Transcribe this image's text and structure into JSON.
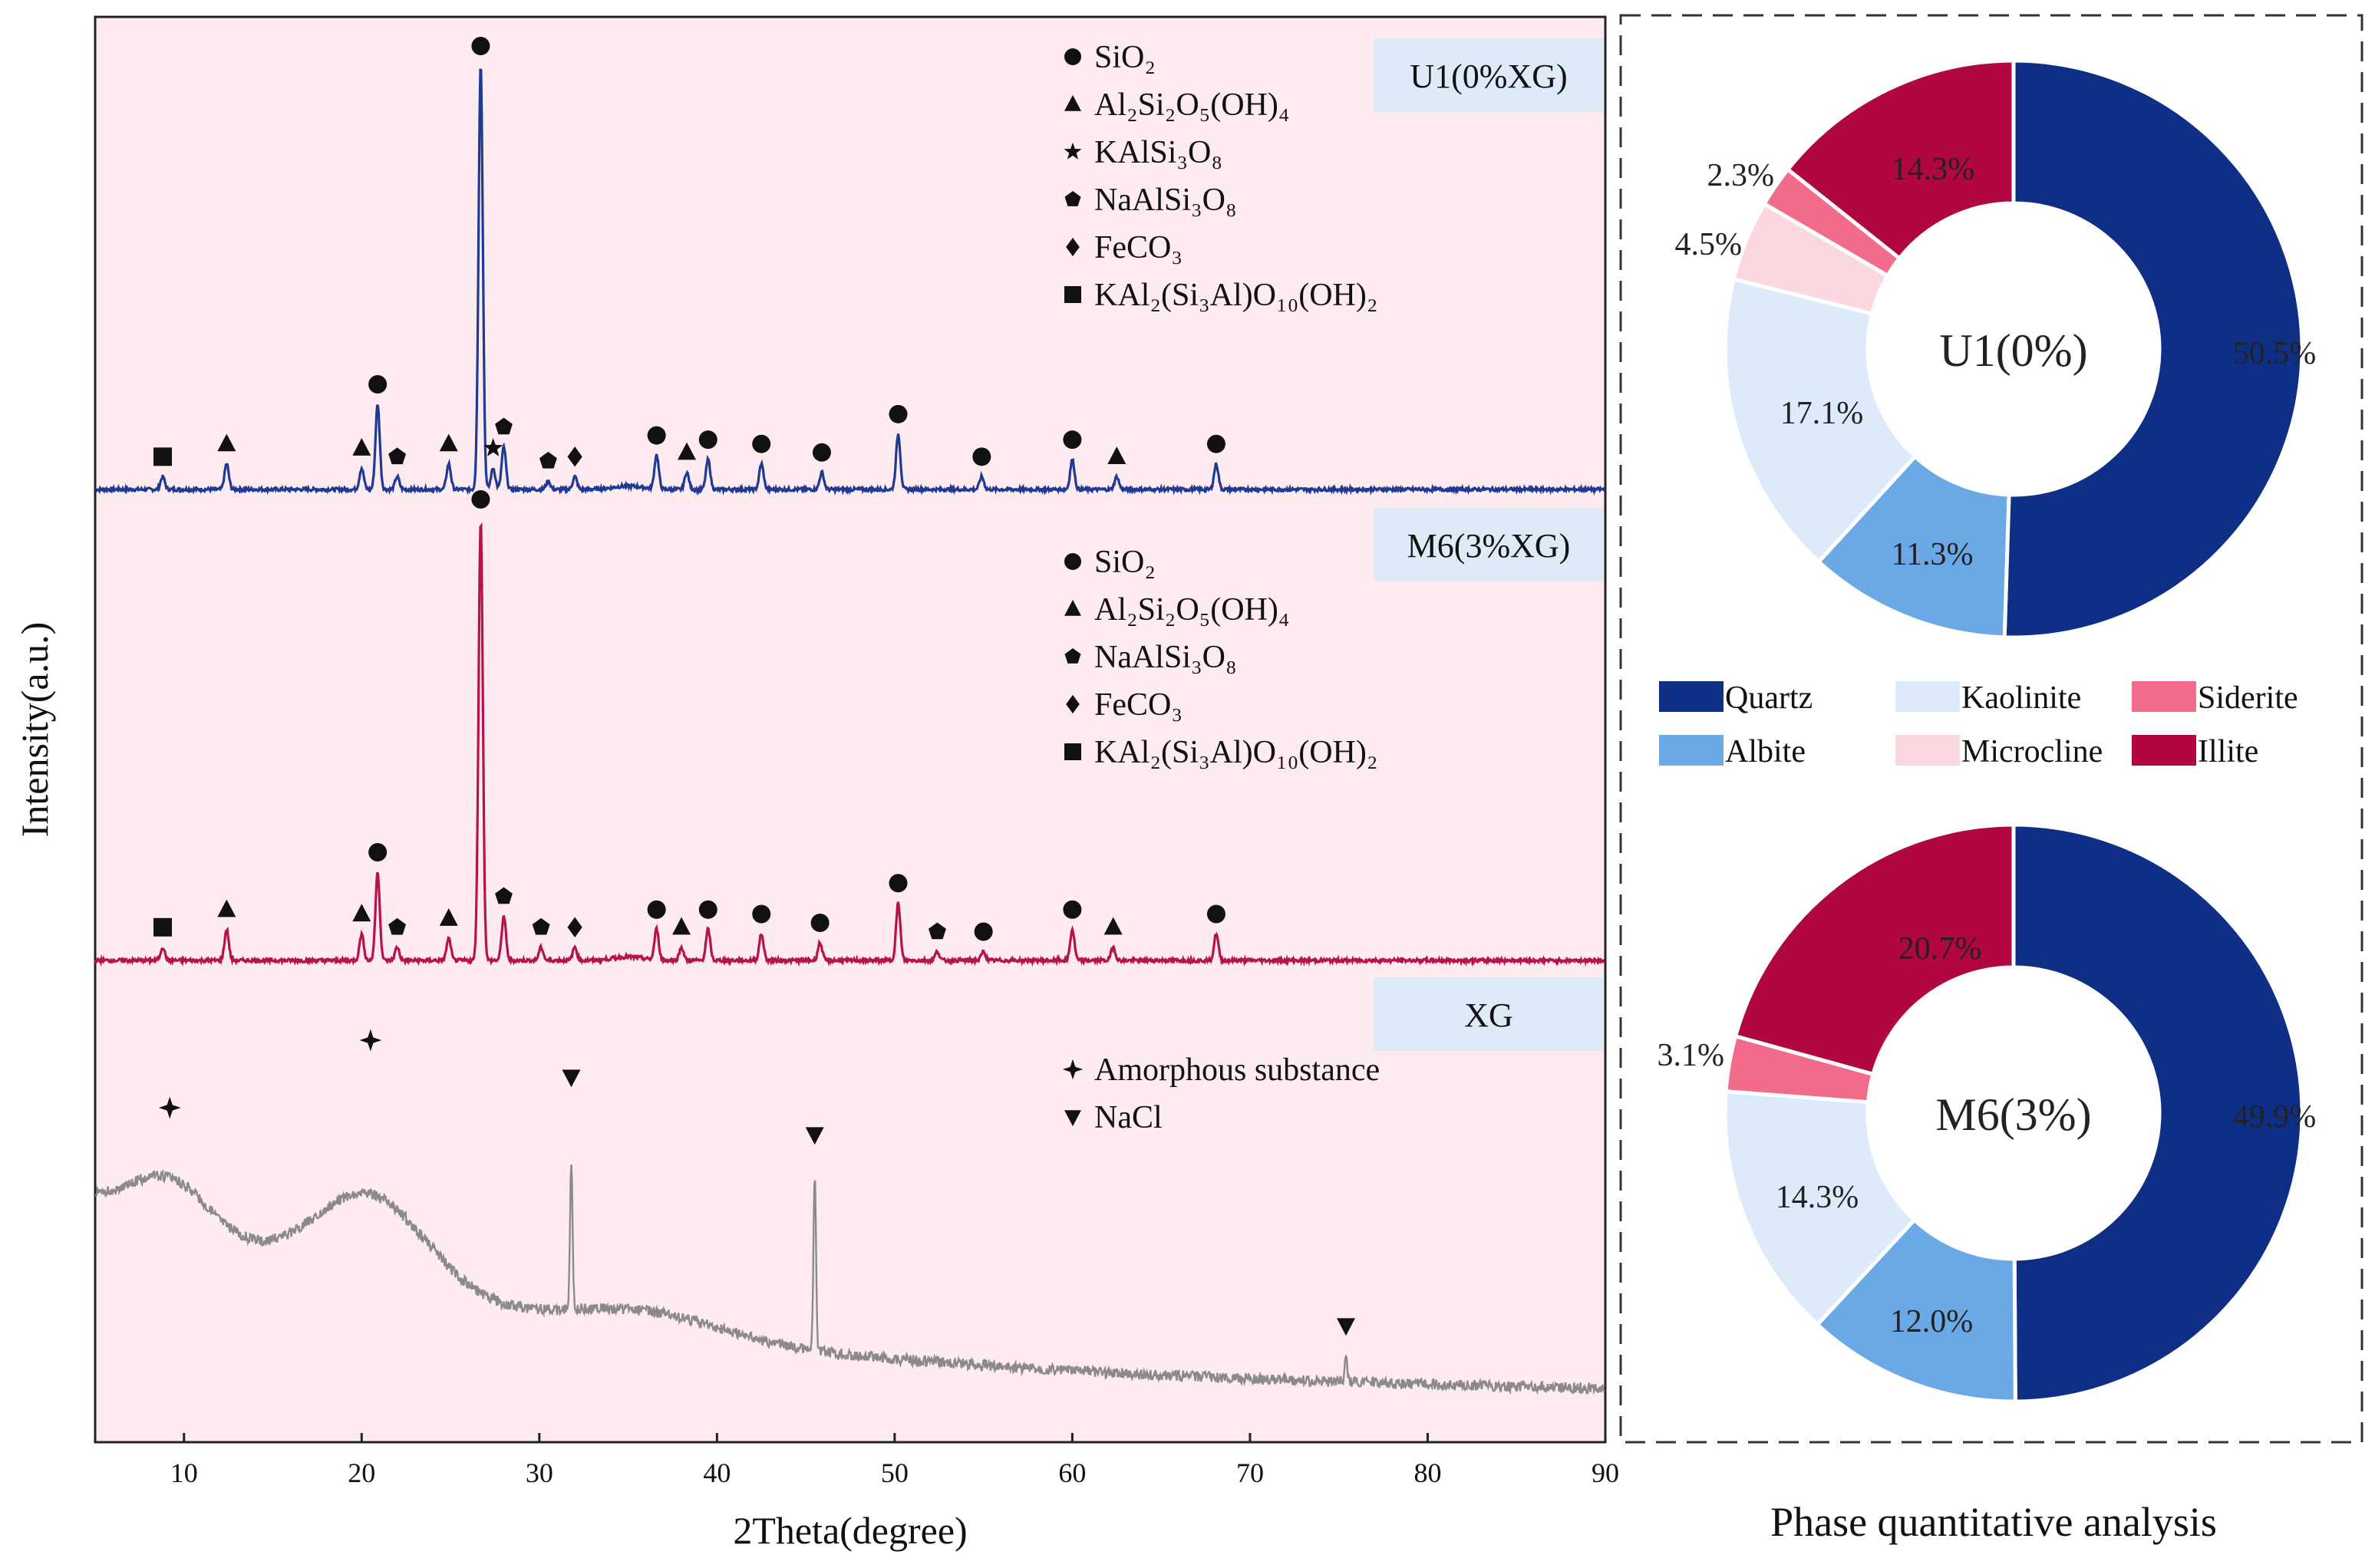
{
  "chart_data": [
    {
      "type": "line",
      "title": "",
      "xlabel": "2Theta(degree)",
      "ylabel": "Intensity(a.u.)",
      "xlim": [
        5,
        90
      ],
      "xticks": [
        10,
        20,
        30,
        40,
        50,
        60,
        70,
        80,
        90
      ],
      "series": [
        {
          "name": "U1(0%XG)",
          "color": "#1f3a93",
          "peaks": [
            {
              "x": 8.8,
              "h": 0.03,
              "marker": "square"
            },
            {
              "x": 12.4,
              "h": 0.06,
              "marker": "triangle"
            },
            {
              "x": 20.0,
              "h": 0.05,
              "marker": "triangle"
            },
            {
              "x": 20.9,
              "h": 0.2,
              "marker": "circle"
            },
            {
              "x": 22.0,
              "h": 0.03,
              "marker": "pentagon"
            },
            {
              "x": 24.9,
              "h": 0.06,
              "marker": "triangle"
            },
            {
              "x": 26.7,
              "h": 1.0,
              "marker": "circle"
            },
            {
              "x": 27.4,
              "h": 0.05,
              "marker": "star"
            },
            {
              "x": 28.0,
              "h": 0.1,
              "marker": "pentagon"
            },
            {
              "x": 30.5,
              "h": 0.02,
              "marker": "pentagon"
            },
            {
              "x": 32.0,
              "h": 0.03,
              "marker": "diamond"
            },
            {
              "x": 36.6,
              "h": 0.08,
              "marker": "circle"
            },
            {
              "x": 38.3,
              "h": 0.04,
              "marker": "triangle"
            },
            {
              "x": 39.5,
              "h": 0.07,
              "marker": "circle"
            },
            {
              "x": 42.5,
              "h": 0.06,
              "marker": "circle"
            },
            {
              "x": 45.9,
              "h": 0.04,
              "marker": "circle"
            },
            {
              "x": 50.2,
              "h": 0.13,
              "marker": "circle"
            },
            {
              "x": 54.9,
              "h": 0.03,
              "marker": "circle"
            },
            {
              "x": 60.0,
              "h": 0.07,
              "marker": "circle"
            },
            {
              "x": 62.5,
              "h": 0.03,
              "marker": "triangle"
            },
            {
              "x": 68.1,
              "h": 0.06,
              "marker": "circle"
            }
          ],
          "legend": [
            {
              "marker": "circle",
              "label": "SiO₂"
            },
            {
              "marker": "triangle",
              "label": "Al₂Si₂O₅(OH)₄"
            },
            {
              "marker": "star",
              "label": "KAlSi₃O₈"
            },
            {
              "marker": "pentagon",
              "label": "NaAlSi₃O₈"
            },
            {
              "marker": "diamond",
              "label": "FeCO₃"
            },
            {
              "marker": "square",
              "label": "KAl₂(Si₃Al)O₁₀(OH)₂"
            }
          ]
        },
        {
          "name": "M6(3%XG)",
          "color": "#b5134a",
          "peaks": [
            {
              "x": 8.8,
              "h": 0.03,
              "marker": "square"
            },
            {
              "x": 12.4,
              "h": 0.07,
              "marker": "triangle"
            },
            {
              "x": 20.0,
              "h": 0.06,
              "marker": "triangle"
            },
            {
              "x": 20.9,
              "h": 0.2,
              "marker": "circle"
            },
            {
              "x": 22.0,
              "h": 0.03,
              "marker": "pentagon"
            },
            {
              "x": 24.9,
              "h": 0.05,
              "marker": "triangle"
            },
            {
              "x": 26.7,
              "h": 1.0,
              "marker": "circle"
            },
            {
              "x": 28.0,
              "h": 0.1,
              "marker": "pentagon"
            },
            {
              "x": 30.1,
              "h": 0.03,
              "marker": "pentagon"
            },
            {
              "x": 32.0,
              "h": 0.03,
              "marker": "diamond"
            },
            {
              "x": 36.6,
              "h": 0.07,
              "marker": "circle"
            },
            {
              "x": 38.0,
              "h": 0.03,
              "marker": "triangle"
            },
            {
              "x": 39.5,
              "h": 0.07,
              "marker": "circle"
            },
            {
              "x": 42.5,
              "h": 0.06,
              "marker": "circle"
            },
            {
              "x": 45.8,
              "h": 0.04,
              "marker": "circle"
            },
            {
              "x": 50.2,
              "h": 0.13,
              "marker": "circle"
            },
            {
              "x": 52.4,
              "h": 0.02,
              "marker": "pentagon"
            },
            {
              "x": 55.0,
              "h": 0.02,
              "marker": "circle"
            },
            {
              "x": 60.0,
              "h": 0.07,
              "marker": "circle"
            },
            {
              "x": 62.3,
              "h": 0.03,
              "marker": "triangle"
            },
            {
              "x": 68.1,
              "h": 0.06,
              "marker": "circle"
            }
          ],
          "legend": [
            {
              "marker": "circle",
              "label": "SiO₂"
            },
            {
              "marker": "triangle",
              "label": "Al₂Si₂O₅(OH)₄"
            },
            {
              "marker": "pentagon",
              "label": "NaAlSi₃O₈"
            },
            {
              "marker": "diamond",
              "label": "FeCO₃"
            },
            {
              "marker": "square",
              "label": "KAl₂(Si₃Al)O₁₀(OH)₂"
            }
          ]
        },
        {
          "name": "XG",
          "color": "#8a8a8a",
          "markers": [
            {
              "x": 9.2,
              "marker": "cross"
            },
            {
              "x": 20.5,
              "marker": "cross"
            },
            {
              "x": 31.8,
              "marker": "inv-triangle"
            },
            {
              "x": 45.5,
              "marker": "inv-triangle"
            },
            {
              "x": 75.4,
              "marker": "inv-triangle"
            }
          ],
          "legend": [
            {
              "marker": "cross",
              "label": "Amorphous substance"
            },
            {
              "marker": "inv-triangle",
              "label": "NaCl"
            }
          ]
        }
      ]
    },
    {
      "type": "pie",
      "subtype": "donut",
      "title": "Phase quantitative analysis",
      "legend": [
        {
          "label": "Quartz",
          "color": "#0f2f87"
        },
        {
          "label": "Kaolinite",
          "color": "#ddeafa"
        },
        {
          "label": "Siderite",
          "color": "#f26b8a"
        },
        {
          "label": "Albite",
          "color": "#6aa8e6"
        },
        {
          "label": "Microcline",
          "color": "#fbd8e0"
        },
        {
          "label": "Illite",
          "color": "#b0083e"
        }
      ],
      "charts": [
        {
          "center_label": "U1(0%)",
          "slices": [
            {
              "label": "Quartz",
              "value": 50.5,
              "text": "50.5%"
            },
            {
              "label": "Albite",
              "value": 11.3,
              "text": "11.3%"
            },
            {
              "label": "Kaolinite",
              "value": 17.1,
              "text": "17.1%"
            },
            {
              "label": "Microcline",
              "value": 4.5,
              "text": "4.5%"
            },
            {
              "label": "Siderite",
              "value": 2.3,
              "text": "2.3%"
            },
            {
              "label": "Illite",
              "value": 14.3,
              "text": "14.3%"
            }
          ]
        },
        {
          "center_label": "M6(3%)",
          "slices": [
            {
              "label": "Quartz",
              "value": 49.9,
              "text": "49.9%"
            },
            {
              "label": "Albite",
              "value": 12.0,
              "text": "12.0%"
            },
            {
              "label": "Kaolinite",
              "value": 14.3,
              "text": "14.3%"
            },
            {
              "label": "Siderite",
              "value": 3.1,
              "text": "3.1%"
            },
            {
              "label": "Illite",
              "value": 20.7,
              "text": "20.7%"
            }
          ]
        }
      ]
    }
  ]
}
